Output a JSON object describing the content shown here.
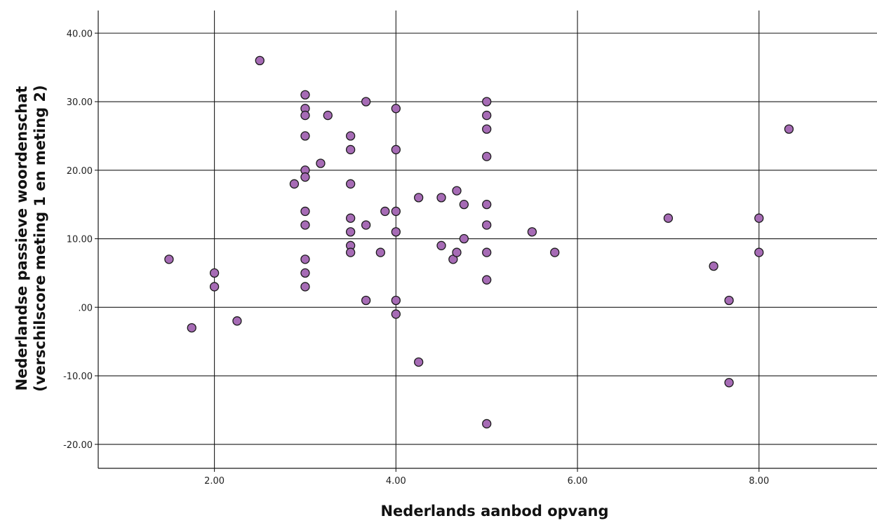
{
  "chart_data": {
    "type": "scatter",
    "title": "",
    "xlabel": "Nederlands aanbod opvang",
    "ylabel_line1": "Nederlandse passieve woordenschat",
    "ylabel_line2": "(verschilscore meting 1 en meting 2)",
    "xlim": [
      0.72,
      9.3
    ],
    "ylim": [
      -23.5,
      43.3
    ],
    "x_ticks": [
      {
        "value": 2,
        "label": "2.00"
      },
      {
        "value": 4,
        "label": "4.00"
      },
      {
        "value": 6,
        "label": "6.00"
      },
      {
        "value": 8,
        "label": "8.00"
      }
    ],
    "y_ticks": [
      {
        "value": 40,
        "label": "40.00"
      },
      {
        "value": 30,
        "label": "30.00"
      },
      {
        "value": 20,
        "label": "20.00"
      },
      {
        "value": 10,
        "label": "10.00"
      },
      {
        "value": 0,
        "label": ".00"
      },
      {
        "value": -10,
        "label": "-10.00"
      },
      {
        "value": -20,
        "label": "-20.00"
      }
    ],
    "grid": true,
    "marker_fill": "#a66bb5",
    "marker_stroke": "#1a1a1a",
    "line_color": "#1a1a1a",
    "series": [
      {
        "points": [
          [
            1.5,
            7
          ],
          [
            1.75,
            -3
          ],
          [
            2.0,
            5
          ],
          [
            2.0,
            3
          ],
          [
            2.25,
            -2
          ],
          [
            2.5,
            36
          ],
          [
            2.88,
            18
          ],
          [
            3.0,
            31
          ],
          [
            3.0,
            29
          ],
          [
            3.0,
            28
          ],
          [
            3.0,
            25
          ],
          [
            3.0,
            20
          ],
          [
            3.0,
            19
          ],
          [
            3.0,
            14
          ],
          [
            3.0,
            12
          ],
          [
            3.0,
            7
          ],
          [
            3.0,
            5
          ],
          [
            3.0,
            3
          ],
          [
            3.17,
            21
          ],
          [
            3.25,
            28
          ],
          [
            3.5,
            25
          ],
          [
            3.5,
            23
          ],
          [
            3.5,
            18
          ],
          [
            3.5,
            13
          ],
          [
            3.5,
            11
          ],
          [
            3.5,
            9
          ],
          [
            3.5,
            8
          ],
          [
            3.67,
            30
          ],
          [
            3.67,
            12
          ],
          [
            3.67,
            1
          ],
          [
            3.83,
            8
          ],
          [
            3.88,
            14
          ],
          [
            4.0,
            29
          ],
          [
            4.0,
            23
          ],
          [
            4.0,
            14
          ],
          [
            4.0,
            11
          ],
          [
            4.0,
            1
          ],
          [
            4.0,
            -1
          ],
          [
            4.25,
            16
          ],
          [
            4.25,
            -8
          ],
          [
            4.5,
            16
          ],
          [
            4.5,
            9
          ],
          [
            4.63,
            7
          ],
          [
            4.67,
            17
          ],
          [
            4.67,
            8
          ],
          [
            4.75,
            15
          ],
          [
            4.75,
            10
          ],
          [
            5.0,
            30
          ],
          [
            5.0,
            28
          ],
          [
            5.0,
            26
          ],
          [
            5.0,
            22
          ],
          [
            5.0,
            15
          ],
          [
            5.0,
            12
          ],
          [
            5.0,
            8
          ],
          [
            5.0,
            4
          ],
          [
            5.0,
            -17
          ],
          [
            5.5,
            11
          ],
          [
            5.75,
            8
          ],
          [
            7.0,
            13
          ],
          [
            7.5,
            6
          ],
          [
            7.67,
            1
          ],
          [
            7.67,
            -11
          ],
          [
            8.0,
            13
          ],
          [
            8.0,
            8
          ],
          [
            8.33,
            26
          ]
        ]
      }
    ]
  }
}
